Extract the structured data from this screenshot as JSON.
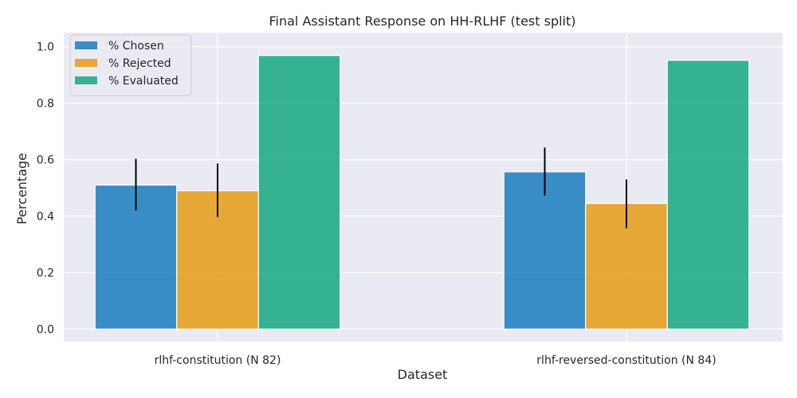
{
  "chart_data": {
    "type": "bar",
    "title": "Final Assistant Response on HH-RLHF (test split)",
    "xlabel": "Dataset",
    "ylabel": "Percentage",
    "categories": [
      "rlhf-constitution (N 82)",
      "rlhf-reversed-constitution (N 84)"
    ],
    "series": [
      {
        "name": "% Chosen",
        "values": [
          0.51,
          0.557
        ],
        "errors": [
          [
            0.42,
            0.603
          ],
          [
            0.473,
            0.643
          ]
        ],
        "color": "#1f7fbf"
      },
      {
        "name": "% Rejected",
        "values": [
          0.49,
          0.445
        ],
        "errors": [
          [
            0.397,
            0.586
          ],
          [
            0.357,
            0.53
          ]
        ],
        "color": "#e69d1c"
      },
      {
        "name": "% Evaluated",
        "values": [
          0.969,
          0.952
        ],
        "errors": null,
        "color": "#1aaa84"
      }
    ],
    "ylim": [
      -0.044,
      1.05
    ],
    "yticks": [
      0.0,
      0.2,
      0.4,
      0.6,
      0.8,
      1.0
    ],
    "ytick_labels": [
      "0.0",
      "0.2",
      "0.4",
      "0.6",
      "0.8",
      "1.0"
    ],
    "grid": true,
    "legend_position": "top-left",
    "background": "#eaeaf2"
  }
}
